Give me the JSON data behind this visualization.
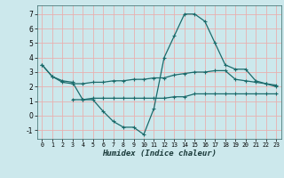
{
  "xlabel": "Humidex (Indice chaleur)",
  "background_color": "#cce8ec",
  "grid_color": "#e8b0b0",
  "line_color": "#1a6b6b",
  "xlim": [
    -0.5,
    23.5
  ],
  "ylim": [
    -1.6,
    7.6
  ],
  "xticks": [
    0,
    1,
    2,
    3,
    4,
    5,
    6,
    7,
    8,
    9,
    10,
    11,
    12,
    13,
    14,
    15,
    16,
    17,
    18,
    19,
    20,
    21,
    22,
    23
  ],
  "yticks": [
    -1,
    0,
    1,
    2,
    3,
    4,
    5,
    6,
    7
  ],
  "line1_x": [
    0,
    1,
    2,
    3,
    4,
    5,
    6,
    7,
    8,
    9,
    10,
    11,
    12,
    13,
    14,
    15,
    16,
    17,
    18,
    19,
    20,
    21,
    22,
    23
  ],
  "line1_y": [
    3.5,
    2.7,
    2.4,
    2.3,
    1.1,
    1.1,
    0.3,
    -0.4,
    -0.8,
    -0.8,
    -1.3,
    0.5,
    4.0,
    5.5,
    7.0,
    7.0,
    6.5,
    5.0,
    3.5,
    3.2,
    3.2,
    2.4,
    2.2,
    2.0
  ],
  "line2_x": [
    0,
    1,
    2,
    3,
    4,
    5,
    6,
    7,
    8,
    9,
    10,
    11,
    12,
    13,
    14,
    15,
    16,
    17,
    18,
    19,
    20,
    21,
    22,
    23
  ],
  "line2_y": [
    3.5,
    2.7,
    2.3,
    2.2,
    2.2,
    2.3,
    2.3,
    2.4,
    2.4,
    2.5,
    2.5,
    2.6,
    2.6,
    2.8,
    2.9,
    3.0,
    3.0,
    3.1,
    3.1,
    2.5,
    2.4,
    2.3,
    2.2,
    2.1
  ],
  "line3_x": [
    3,
    4,
    5,
    6,
    7,
    8,
    9,
    10,
    11,
    12,
    13,
    14,
    15,
    16,
    17,
    18,
    19,
    20,
    21,
    22,
    23
  ],
  "line3_y": [
    1.1,
    1.1,
    1.2,
    1.2,
    1.2,
    1.2,
    1.2,
    1.2,
    1.2,
    1.2,
    1.3,
    1.3,
    1.5,
    1.5,
    1.5,
    1.5,
    1.5,
    1.5,
    1.5,
    1.5,
    1.5
  ]
}
